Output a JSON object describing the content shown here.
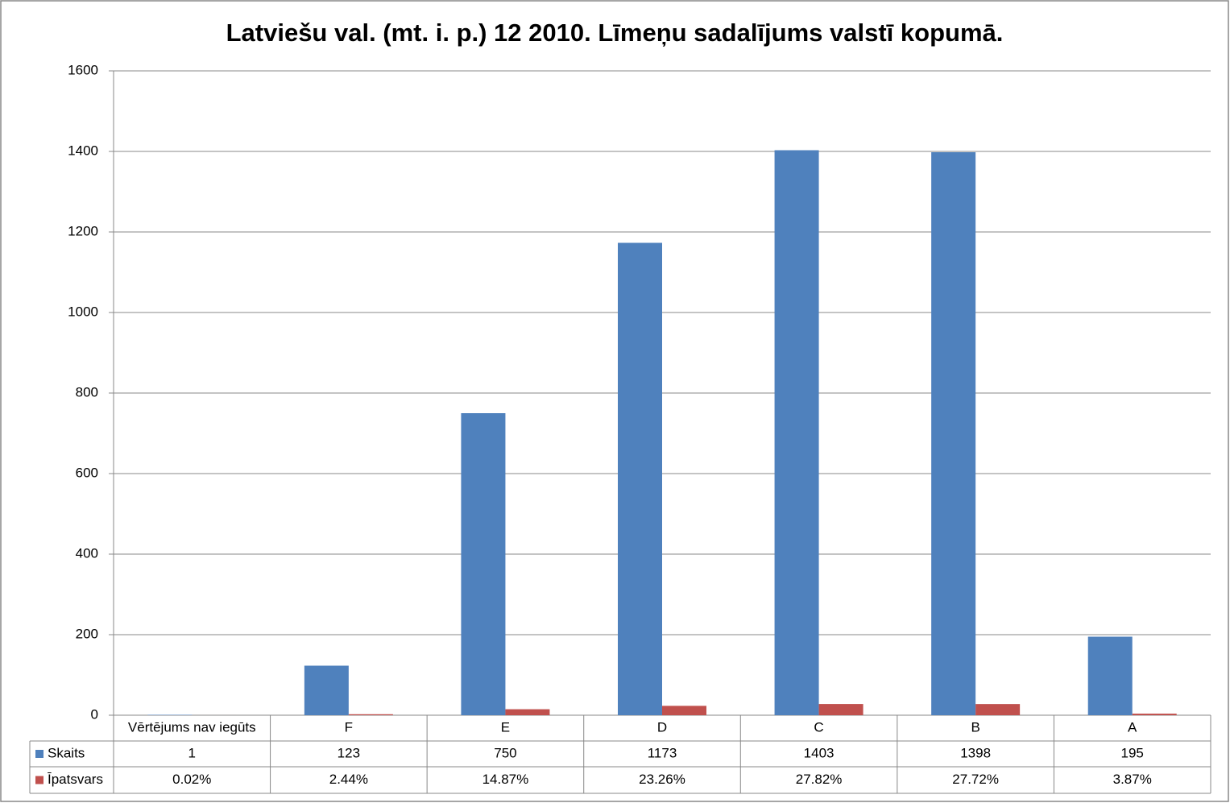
{
  "chart_data": {
    "type": "bar",
    "title": "Latviešu val. (mt. i. p.) 12 2010. Līmeņu sadalījums valstī kopumā.",
    "categories": [
      "Vērtējums nav iegūts",
      "F",
      "E",
      "D",
      "C",
      "B",
      "A"
    ],
    "series": [
      {
        "name": "Skaits",
        "color": "#4f81bd",
        "values": [
          1,
          123,
          750,
          1173,
          1403,
          1398,
          195
        ]
      },
      {
        "name": "Īpatsvars",
        "color": "#c0504d",
        "values": [
          0.02,
          2.44,
          14.87,
          23.26,
          27.82,
          27.72,
          3.87
        ],
        "value_labels": [
          "0.02%",
          "2.44%",
          "14.87%",
          "23.26%",
          "27.82%",
          "27.72%",
          "3.87%"
        ]
      }
    ],
    "ylim": [
      0,
      1600
    ],
    "yticks": [
      0,
      200,
      400,
      600,
      800,
      1000,
      1200,
      1400,
      1600
    ],
    "grid": true
  }
}
